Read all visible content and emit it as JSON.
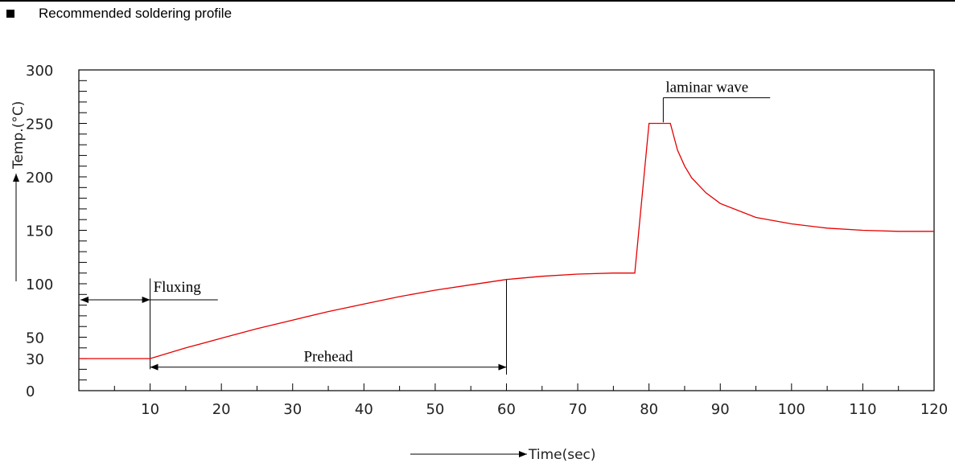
{
  "heading": {
    "text": "Recommended soldering profile"
  },
  "chart_data": {
    "type": "line",
    "xlabel": "Time(sec)",
    "ylabel": "Temp.(°C)",
    "xlim": [
      0,
      120
    ],
    "ylim": [
      0,
      300
    ],
    "x_ticks": [
      10,
      20,
      30,
      40,
      50,
      60,
      70,
      80,
      90,
      100,
      110,
      120
    ],
    "y_ticks": [
      0,
      30,
      50,
      100,
      150,
      200,
      250,
      300
    ],
    "grid": false,
    "line_color": "#e60000",
    "series": [
      {
        "x": [
          0,
          10,
          15,
          20,
          25,
          30,
          35,
          40,
          45,
          50,
          55,
          60,
          65,
          70,
          75,
          78,
          80,
          81,
          83,
          84,
          85,
          86,
          88,
          90,
          95,
          100,
          105,
          110,
          115,
          120
        ],
        "y": [
          30,
          30,
          40,
          49,
          58,
          66,
          74,
          81,
          88,
          94,
          99,
          104,
          107,
          109,
          110,
          110,
          250,
          250,
          250,
          225,
          210,
          199,
          185,
          175,
          162,
          156,
          152,
          150,
          149,
          149
        ]
      }
    ],
    "annotations": [
      {
        "label": "Fluxing",
        "x_start": 0,
        "x_end": 10
      },
      {
        "label": "Prehead",
        "x_start": 10,
        "x_end": 60
      },
      {
        "label": "laminar wave",
        "x": 82
      }
    ]
  }
}
